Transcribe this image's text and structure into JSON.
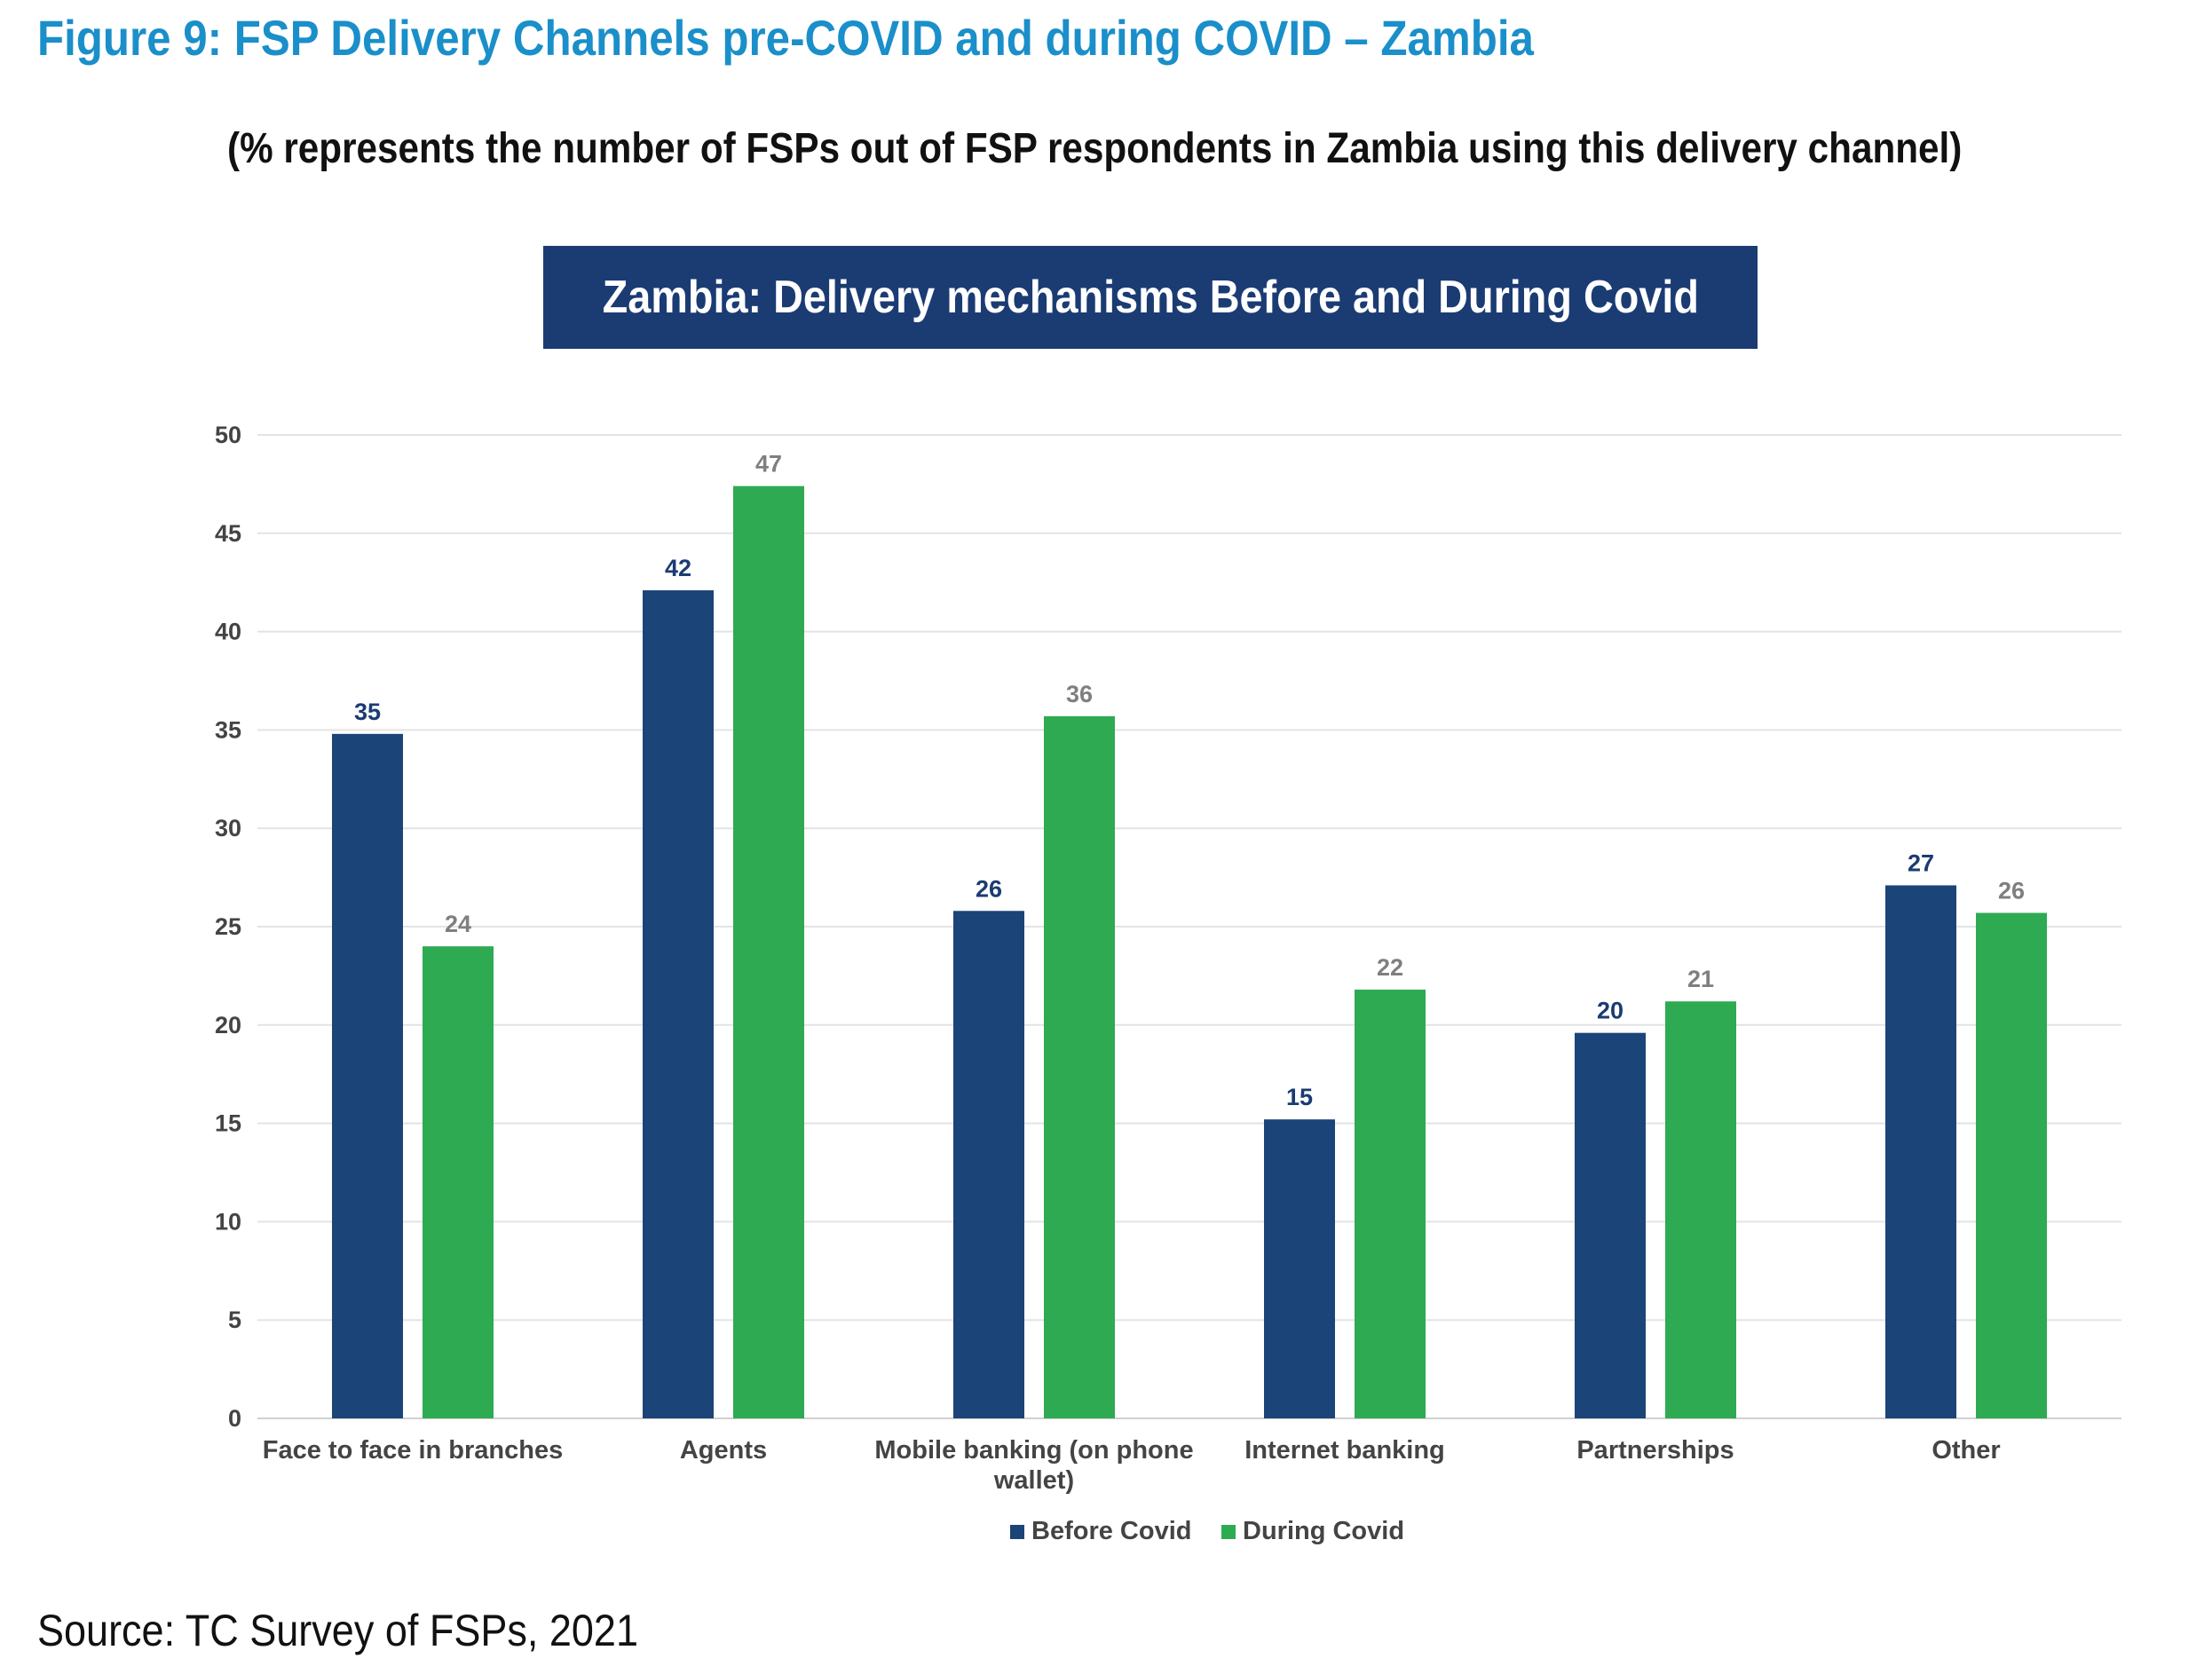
{
  "figure_title": "Figure 9: FSP Delivery Channels pre-COVID and during COVID – Zambia",
  "subtitle": "(% represents the number of FSPs out of FSP respondents in Zambia using this delivery channel)",
  "source": "Source: TC Survey of FSPs, 2021",
  "colors": {
    "title": "#1a8fc9",
    "banner": "#1b3b73",
    "before": "#1b4478",
    "during": "#2eaa52",
    "before_label": "#1b3b73",
    "during_label": "#7f7f7f",
    "grid": "#e3e3e3"
  },
  "chart_data": {
    "type": "bar",
    "title": "Zambia: Delivery mechanisms Before and During Covid",
    "categories": [
      [
        "Face to face in branches"
      ],
      [
        "Agents"
      ],
      [
        "Mobile banking (on phone",
        "wallet)"
      ],
      [
        "Internet banking"
      ],
      [
        "Partnerships"
      ],
      [
        "Other"
      ]
    ],
    "series": [
      {
        "name": "Before Covid",
        "values": [
          34.8,
          42.1,
          25.8,
          15.2,
          19.6,
          27.1
        ],
        "labels": [
          "35",
          "42",
          "26",
          "15",
          "20",
          "27"
        ]
      },
      {
        "name": "During Covid",
        "values": [
          24.0,
          47.4,
          35.7,
          21.8,
          21.2,
          25.7
        ],
        "labels": [
          "24",
          "47",
          "36",
          "22",
          "21",
          "26"
        ]
      }
    ],
    "ylim": [
      0,
      50
    ],
    "yticks": [
      "0",
      "5",
      "10",
      "15",
      "20",
      "25",
      "30",
      "35",
      "40",
      "45",
      "50"
    ],
    "grid": true,
    "legend": "bottom",
    "xlabel": "",
    "ylabel": ""
  }
}
